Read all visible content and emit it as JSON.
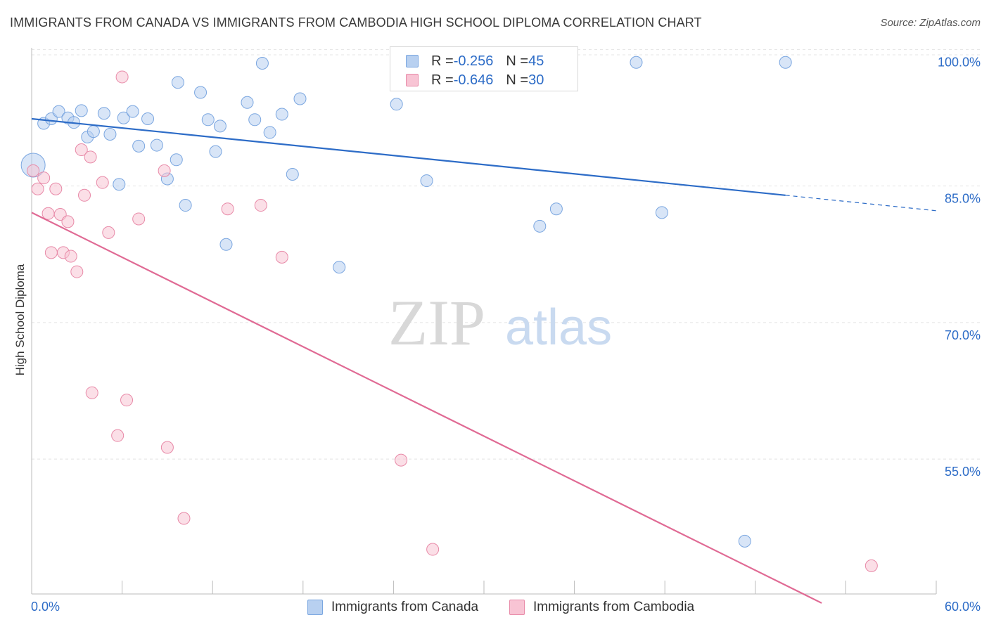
{
  "title": "IMMIGRANTS FROM CANADA VS IMMIGRANTS FROM CAMBODIA HIGH SCHOOL DIPLOMA CORRELATION CHART",
  "source": "Source: ZipAtlas.com",
  "watermark": {
    "zip": "ZIP",
    "atlas": "atlas"
  },
  "legend": {
    "rows": [
      {
        "r_label": "R = ",
        "r_value": "-0.256",
        "n_label": "N = ",
        "n_value": "45",
        "color": "#b8d0f0",
        "border": "#7aa6e0"
      },
      {
        "r_label": "R = ",
        "r_value": "-0.646",
        "n_label": "N = ",
        "n_value": "30",
        "color": "#f8c4d4",
        "border": "#e88aa8"
      }
    ]
  },
  "chart_data": {
    "type": "scatter",
    "title": "IMMIGRANTS FROM CANADA VS IMMIGRANTS FROM CAMBODIA HIGH SCHOOL DIPLOMA CORRELATION CHART",
    "xlabel": "",
    "ylabel": "High School Diploma",
    "xlim": [
      0,
      60
    ],
    "ylim": [
      41.5,
      101.5
    ],
    "x_tick_labels": [
      {
        "value": 0,
        "label": "0.0%"
      },
      {
        "value": 60,
        "label": "60.0%"
      }
    ],
    "y_tick_labels": [
      {
        "value": 100,
        "label": "100.0%"
      },
      {
        "value": 85,
        "label": "85.0%"
      },
      {
        "value": 70,
        "label": "70.0%"
      },
      {
        "value": 55,
        "label": "55.0%"
      }
    ],
    "grid": true,
    "legend_position": "top-center",
    "series": [
      {
        "name": "Immigrants from Canada",
        "color": "#b8d0f0",
        "stroke": "#7aa6e0",
        "line_color": "#2d6cc7",
        "trend": {
          "x": [
            0,
            50
          ],
          "y": [
            93.7,
            85.3
          ],
          "dashed_to_x": 60,
          "dashed_to_y": 83.6
        },
        "points": [
          {
            "x": 0.1,
            "y": 88.6,
            "big": true
          },
          {
            "x": 0.8,
            "y": 93.2
          },
          {
            "x": 1.3,
            "y": 93.7
          },
          {
            "x": 1.8,
            "y": 94.5
          },
          {
            "x": 2.4,
            "y": 93.8
          },
          {
            "x": 2.8,
            "y": 93.3
          },
          {
            "x": 3.3,
            "y": 94.6
          },
          {
            "x": 3.7,
            "y": 91.7
          },
          {
            "x": 4.1,
            "y": 92.3
          },
          {
            "x": 4.8,
            "y": 94.3
          },
          {
            "x": 5.2,
            "y": 92.0
          },
          {
            "x": 5.8,
            "y": 86.5
          },
          {
            "x": 6.1,
            "y": 93.8
          },
          {
            "x": 6.7,
            "y": 94.5
          },
          {
            "x": 7.1,
            "y": 90.7
          },
          {
            "x": 7.7,
            "y": 93.7
          },
          {
            "x": 8.3,
            "y": 90.8
          },
          {
            "x": 9.0,
            "y": 87.1
          },
          {
            "x": 9.6,
            "y": 89.2
          },
          {
            "x": 9.7,
            "y": 97.7
          },
          {
            "x": 10.2,
            "y": 84.2
          },
          {
            "x": 11.2,
            "y": 96.6
          },
          {
            "x": 11.7,
            "y": 93.6
          },
          {
            "x": 12.2,
            "y": 90.1
          },
          {
            "x": 12.5,
            "y": 92.9
          },
          {
            "x": 12.9,
            "y": 79.9
          },
          {
            "x": 14.3,
            "y": 95.5
          },
          {
            "x": 14.8,
            "y": 93.6
          },
          {
            "x": 15.3,
            "y": 99.8
          },
          {
            "x": 15.8,
            "y": 92.2
          },
          {
            "x": 16.6,
            "y": 94.2
          },
          {
            "x": 17.3,
            "y": 87.6
          },
          {
            "x": 17.8,
            "y": 95.9
          },
          {
            "x": 20.4,
            "y": 77.4
          },
          {
            "x": 24.2,
            "y": 95.3
          },
          {
            "x": 26.2,
            "y": 86.9
          },
          {
            "x": 28.5,
            "y": 99.9
          },
          {
            "x": 32.0,
            "y": 99.9
          },
          {
            "x": 33.2,
            "y": 99.9
          },
          {
            "x": 33.7,
            "y": 81.9
          },
          {
            "x": 34.8,
            "y": 83.8
          },
          {
            "x": 40.1,
            "y": 99.9
          },
          {
            "x": 41.8,
            "y": 83.4
          },
          {
            "x": 47.3,
            "y": 47.3
          },
          {
            "x": 50.0,
            "y": 99.9
          }
        ]
      },
      {
        "name": "Immigrants from Cambodia",
        "color": "#f8c4d4",
        "stroke": "#e88aa8",
        "line_color": "#e06a94",
        "trend": {
          "x": [
            0,
            52.4
          ],
          "y": [
            83.4,
            40.5
          ]
        },
        "points": [
          {
            "x": 0.1,
            "y": 88.0
          },
          {
            "x": 0.4,
            "y": 86.0
          },
          {
            "x": 0.8,
            "y": 87.2
          },
          {
            "x": 1.1,
            "y": 83.3
          },
          {
            "x": 1.3,
            "y": 79.0
          },
          {
            "x": 1.6,
            "y": 86.0
          },
          {
            "x": 1.9,
            "y": 83.2
          },
          {
            "x": 2.1,
            "y": 79.0
          },
          {
            "x": 2.4,
            "y": 82.4
          },
          {
            "x": 2.6,
            "y": 78.6
          },
          {
            "x": 3.0,
            "y": 76.9
          },
          {
            "x": 3.3,
            "y": 90.3
          },
          {
            "x": 3.5,
            "y": 85.3
          },
          {
            "x": 3.9,
            "y": 89.5
          },
          {
            "x": 4.0,
            "y": 63.6
          },
          {
            "x": 4.7,
            "y": 86.7
          },
          {
            "x": 5.1,
            "y": 81.2
          },
          {
            "x": 5.7,
            "y": 58.9
          },
          {
            "x": 6.0,
            "y": 98.3
          },
          {
            "x": 6.3,
            "y": 62.8
          },
          {
            "x": 7.1,
            "y": 82.7
          },
          {
            "x": 8.8,
            "y": 88.0
          },
          {
            "x": 9.0,
            "y": 57.6
          },
          {
            "x": 10.1,
            "y": 49.8
          },
          {
            "x": 13.0,
            "y": 83.8
          },
          {
            "x": 15.2,
            "y": 84.2
          },
          {
            "x": 16.6,
            "y": 78.5
          },
          {
            "x": 24.5,
            "y": 56.2
          },
          {
            "x": 26.6,
            "y": 46.4
          },
          {
            "x": 55.7,
            "y": 44.6
          }
        ]
      }
    ]
  }
}
